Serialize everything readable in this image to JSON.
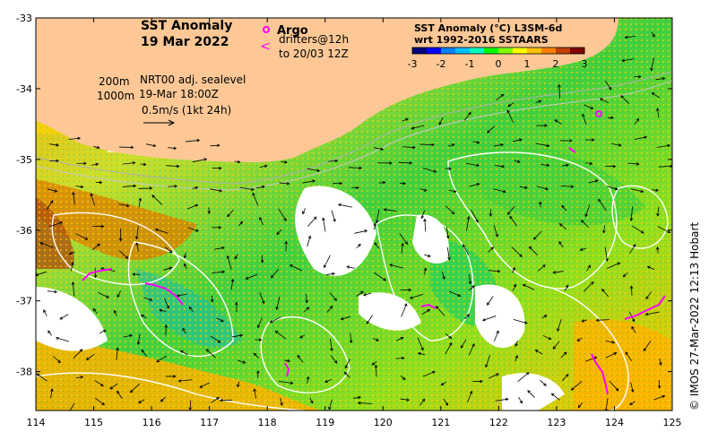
{
  "title": {
    "line1": "SST Anomaly",
    "line2": "19 Mar 2022"
  },
  "legend": {
    "argo_label": "Argo",
    "drifters_line1": "drifters@12h",
    "drifters_line2": "to 20/03 12Z",
    "argo_color": "#ff00ff",
    "drifter_color": "#ff00ff"
  },
  "info": {
    "depth_200": "200m",
    "depth_1000": "1000m",
    "product": "NRT00 adj. sealevel",
    "time": "19-Mar 18:00Z",
    "scale": "0.5m/s (1kt 24h)"
  },
  "colorbar": {
    "title_line1": "SST Anomaly (°C) L3SM-6d",
    "title_line2": "wrt 1992-2016 SSTAARS",
    "ticks": [
      "-3",
      "-2",
      "-1",
      "0",
      "1",
      "2",
      "3"
    ],
    "colors": [
      "#000080",
      "#0000ff",
      "#0080ff",
      "#00c0ff",
      "#00ffc0",
      "#00ff00",
      "#80ff00",
      "#ffff00",
      "#ffc000",
      "#ff8000",
      "#c04000",
      "#800000"
    ]
  },
  "axes": {
    "x_ticks": [
      "114",
      "115",
      "116",
      "117",
      "118",
      "119",
      "120",
      "121",
      "122",
      "123",
      "124",
      "125"
    ],
    "y_ticks": [
      "-33",
      "-34",
      "-35",
      "-36",
      "-37",
      "-38"
    ],
    "x_range": [
      114,
      125
    ],
    "y_range": [
      -38.55,
      -33
    ]
  },
  "colors": {
    "land": "#fdc896",
    "sea_warm": "#ffd400",
    "sea_green": "#40d040",
    "cloud": "#ffffff",
    "contour": "#ffffff"
  },
  "credit": "© IMOS 27-Mar-2022 12:13 Hobart"
}
